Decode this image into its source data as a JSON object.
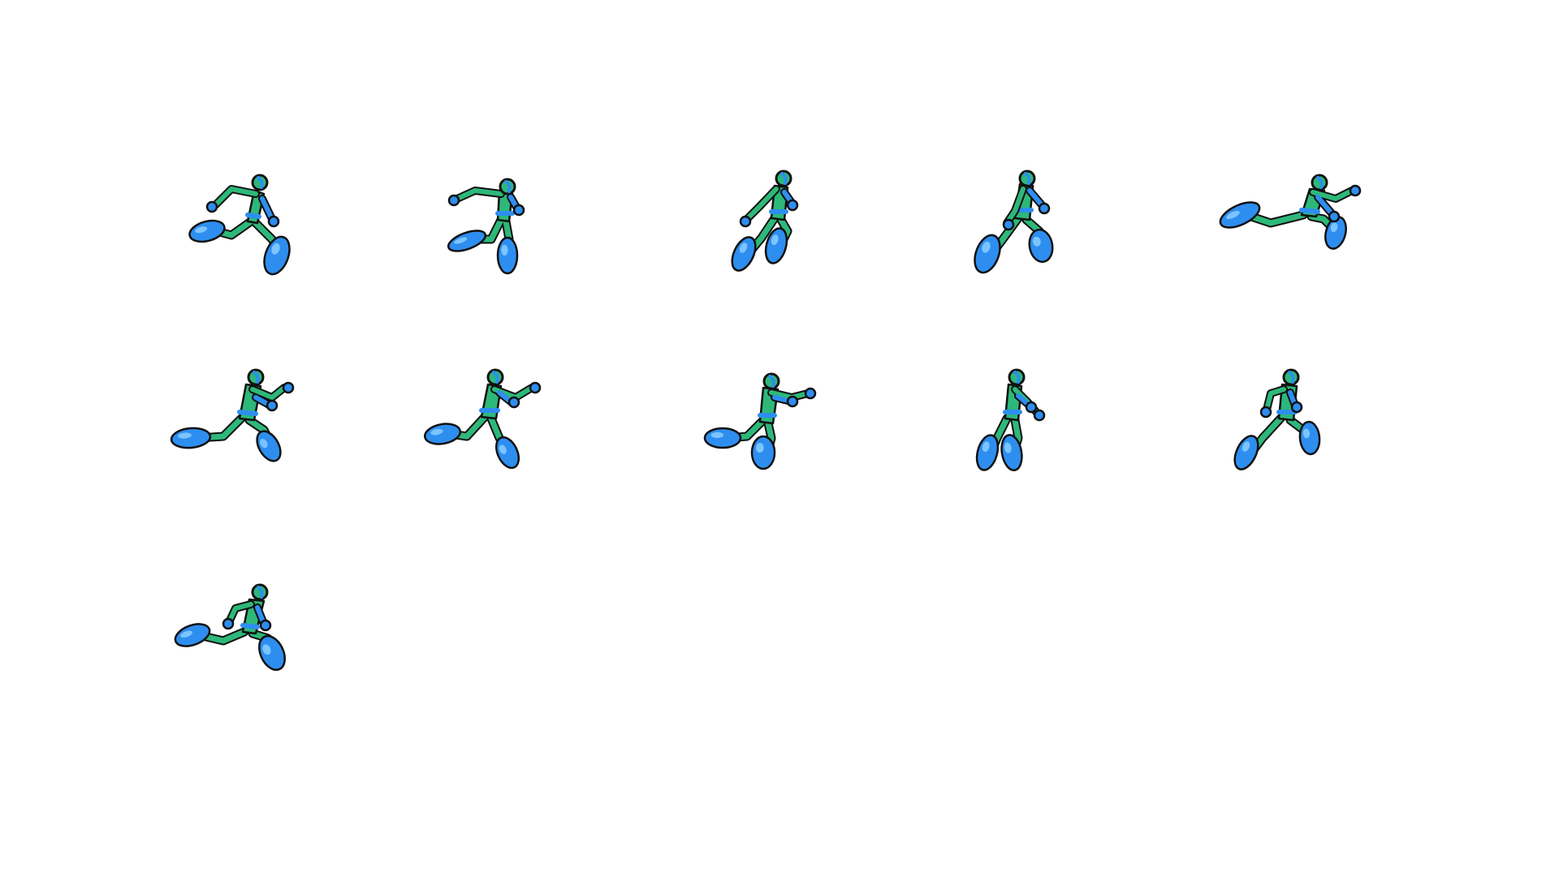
{
  "sprite_sheet": {
    "background_color": "#ffffff",
    "palette": {
      "body": "#2db87a",
      "limb": "#2e8ef0",
      "highlight": "#7cc4ff",
      "outline": "#111111"
    },
    "frame_count": 11,
    "columns": 5,
    "frames": [
      {
        "pose": "run-contact-1"
      },
      {
        "pose": "run-recoil-1"
      },
      {
        "pose": "run-passing-1"
      },
      {
        "pose": "run-high-1"
      },
      {
        "pose": "run-stride-1"
      },
      {
        "pose": "run-contact-2"
      },
      {
        "pose": "run-recoil-2"
      },
      {
        "pose": "run-passing-2"
      },
      {
        "pose": "run-high-2"
      },
      {
        "pose": "run-stride-2"
      },
      {
        "pose": "run-loop"
      }
    ]
  }
}
